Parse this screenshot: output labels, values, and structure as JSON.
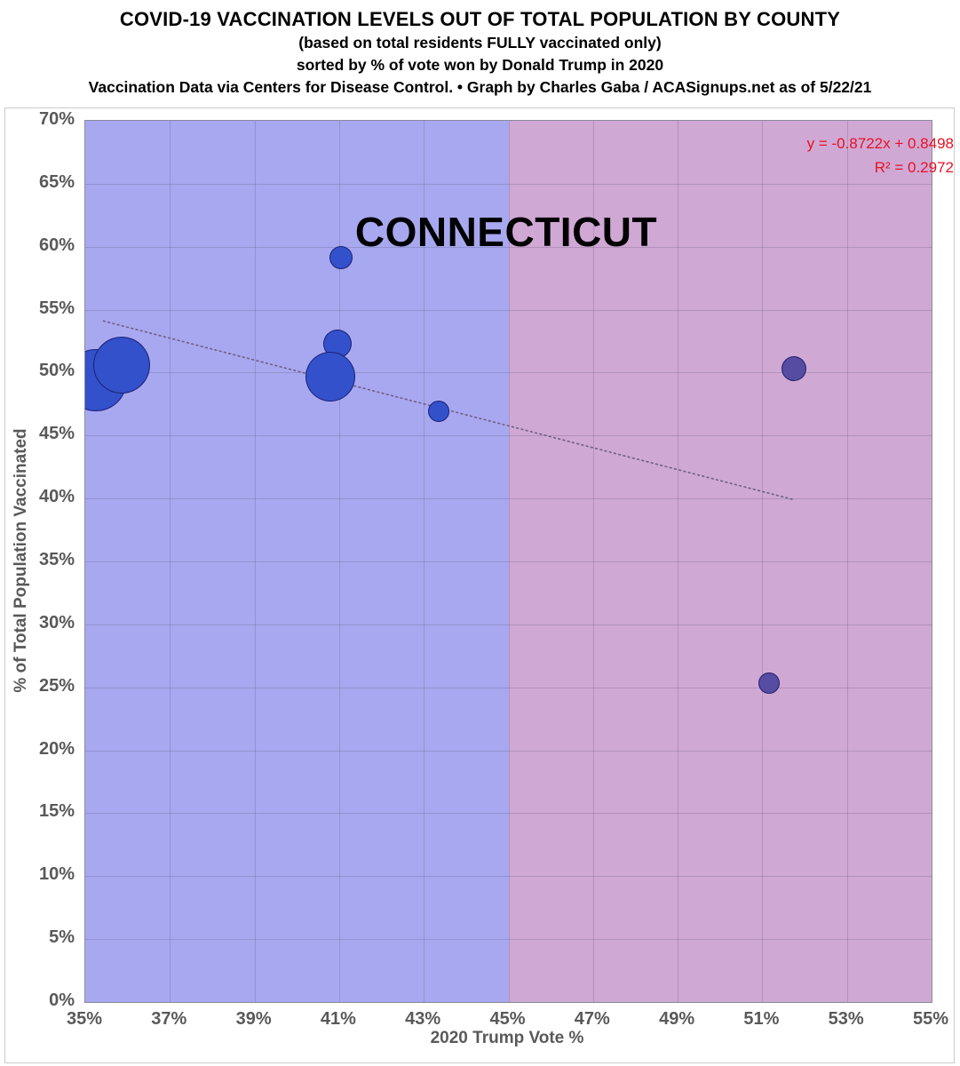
{
  "header": {
    "title": "COVID-19 VACCINATION LEVELS OUT OF TOTAL POPULATION BY COUNTY",
    "subtitle1": "(based on total residents FULLY vaccinated only)",
    "subtitle2": "sorted by % of vote won by Donald Trump in 2020",
    "source_line": "Vaccination Data via Centers for Disease Control. • Graph by Charles Gaba / ACASignups.net as of 5/22/21"
  },
  "chart_data": {
    "type": "scatter",
    "state_label": "CONNECTICUT",
    "xlabel": "2020 Trump Vote %",
    "ylabel": "% of Total Population Vaccinated",
    "xlim": [
      35,
      55
    ],
    "ylim": [
      0,
      70
    ],
    "grid": true,
    "x_ticks": [
      {
        "value": 35,
        "label": "35%"
      },
      {
        "value": 37,
        "label": "37%"
      },
      {
        "value": 39,
        "label": "39%"
      },
      {
        "value": 41,
        "label": "41%"
      },
      {
        "value": 43,
        "label": "43%"
      },
      {
        "value": 45,
        "label": "45%"
      },
      {
        "value": 47,
        "label": "47%"
      },
      {
        "value": 49,
        "label": "49%"
      },
      {
        "value": 51,
        "label": "51%"
      },
      {
        "value": 53,
        "label": "53%"
      },
      {
        "value": 55,
        "label": "55%"
      }
    ],
    "y_ticks": [
      {
        "value": 0,
        "label": "0%"
      },
      {
        "value": 5,
        "label": "5%"
      },
      {
        "value": 10,
        "label": "10%"
      },
      {
        "value": 15,
        "label": "15%"
      },
      {
        "value": 20,
        "label": "20%"
      },
      {
        "value": 25,
        "label": "25%"
      },
      {
        "value": 30,
        "label": "30%"
      },
      {
        "value": 35,
        "label": "35%"
      },
      {
        "value": 40,
        "label": "40%"
      },
      {
        "value": 45,
        "label": "45%"
      },
      {
        "value": 50,
        "label": "50%"
      },
      {
        "value": 55,
        "label": "55%"
      },
      {
        "value": 60,
        "label": "60%"
      },
      {
        "value": 65,
        "label": "65%"
      },
      {
        "value": 70,
        "label": "70%"
      }
    ],
    "regions": [
      {
        "name": "below-45-trump",
        "x_start": 35,
        "x_end": 45,
        "color": "#a8a8f0"
      },
      {
        "name": "above-45-trump",
        "x_start": 45,
        "x_end": 55,
        "color": "#d0a8d4"
      }
    ],
    "points": [
      {
        "x": 35.25,
        "y": 49.4,
        "r": 35,
        "color_key": "blue"
      },
      {
        "x": 35.85,
        "y": 50.6,
        "r": 32,
        "color_key": "blue"
      },
      {
        "x": 40.95,
        "y": 52.3,
        "r": 16,
        "color_key": "blue"
      },
      {
        "x": 40.8,
        "y": 49.7,
        "r": 28,
        "color_key": "blue"
      },
      {
        "x": 41.05,
        "y": 59.1,
        "r": 13,
        "color_key": "blue"
      },
      {
        "x": 43.35,
        "y": 46.9,
        "r": 12,
        "color_key": "blue"
      },
      {
        "x": 51.75,
        "y": 50.3,
        "r": 14,
        "color_key": "purple"
      },
      {
        "x": 51.15,
        "y": 25.3,
        "r": 12,
        "color_key": "purple"
      }
    ],
    "trendline": {
      "equation_label": "y = -0.8722x + 0.8498",
      "r2_label": "R² = 0.2972",
      "x_start": 35.43,
      "y_start": 54.1,
      "x_end": 51.75,
      "y_end": 39.9
    }
  },
  "colors": {
    "point_blue": "#3351cb",
    "point_purple": "#564ca2",
    "point_border": "rgba(18,18,90,0.75)",
    "grid": "rgba(80,80,110,0.25)",
    "trendline": "#6f5f85",
    "equation_text": "#e81123",
    "axis_text": "#595959"
  }
}
